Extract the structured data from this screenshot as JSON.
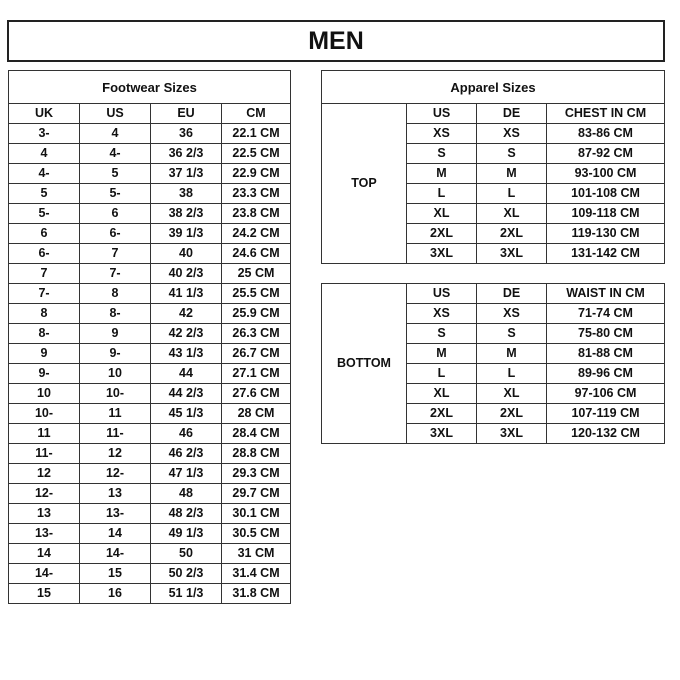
{
  "title": "MEN",
  "footwear": {
    "caption": "Footwear Sizes",
    "headers": [
      "UK",
      "US",
      "EU",
      "CM"
    ],
    "rows": [
      [
        "3-",
        "4",
        "36",
        "22.1 CM"
      ],
      [
        "4",
        "4-",
        "36 2/3",
        "22.5 CM"
      ],
      [
        "4-",
        "5",
        "37 1/3",
        "22.9 CM"
      ],
      [
        "5",
        "5-",
        "38",
        "23.3 CM"
      ],
      [
        "5-",
        "6",
        "38 2/3",
        "23.8 CM"
      ],
      [
        "6",
        "6-",
        "39 1/3",
        "24.2 CM"
      ],
      [
        "6-",
        "7",
        "40",
        "24.6 CM"
      ],
      [
        "7",
        "7-",
        "40 2/3",
        "25 CM"
      ],
      [
        "7-",
        "8",
        "41 1/3",
        "25.5 CM"
      ],
      [
        "8",
        "8-",
        "42",
        "25.9 CM"
      ],
      [
        "8-",
        "9",
        "42 2/3",
        "26.3 CM"
      ],
      [
        "9",
        "9-",
        "43 1/3",
        "26.7 CM"
      ],
      [
        "9-",
        "10",
        "44",
        "27.1 CM"
      ],
      [
        "10",
        "10-",
        "44 2/3",
        "27.6 CM"
      ],
      [
        "10-",
        "11",
        "45 1/3",
        "28 CM"
      ],
      [
        "11",
        "11-",
        "46",
        "28.4 CM"
      ],
      [
        "11-",
        "12",
        "46 2/3",
        "28.8 CM"
      ],
      [
        "12",
        "12-",
        "47 1/3",
        "29.3 CM"
      ],
      [
        "12-",
        "13",
        "48",
        "29.7 CM"
      ],
      [
        "13",
        "13-",
        "48 2/3",
        "30.1 CM"
      ],
      [
        "13-",
        "14",
        "49 1/3",
        "30.5 CM"
      ],
      [
        "14",
        "14-",
        "50",
        "31 CM"
      ],
      [
        "14-",
        "15",
        "50 2/3",
        "31.4 CM"
      ],
      [
        "15",
        "16",
        "51 1/3",
        "31.8 CM"
      ]
    ]
  },
  "apparel": {
    "caption": "Apparel Sizes",
    "top": {
      "label": "TOP",
      "headers": [
        "US",
        "DE",
        "CHEST IN CM"
      ],
      "rows": [
        [
          "XS",
          "XS",
          "83-86 CM"
        ],
        [
          "S",
          "S",
          "87-92 CM"
        ],
        [
          "M",
          "M",
          "93-100 CM"
        ],
        [
          "L",
          "L",
          "101-108 CM"
        ],
        [
          "XL",
          "XL",
          "109-118 CM"
        ],
        [
          "2XL",
          "2XL",
          "119-130 CM"
        ],
        [
          "3XL",
          "3XL",
          "131-142 CM"
        ]
      ]
    },
    "bottom": {
      "label": "BOTTOM",
      "headers": [
        "US",
        "DE",
        "WAIST IN CM"
      ],
      "rows": [
        [
          "XS",
          "XS",
          "71-74 CM"
        ],
        [
          "S",
          "S",
          "75-80 CM"
        ],
        [
          "M",
          "M",
          "81-88 CM"
        ],
        [
          "L",
          "L",
          "89-96 CM"
        ],
        [
          "XL",
          "XL",
          "97-106 CM"
        ],
        [
          "2XL",
          "2XL",
          "107-119 CM"
        ],
        [
          "3XL",
          "3XL",
          "120-132 CM"
        ]
      ]
    }
  }
}
